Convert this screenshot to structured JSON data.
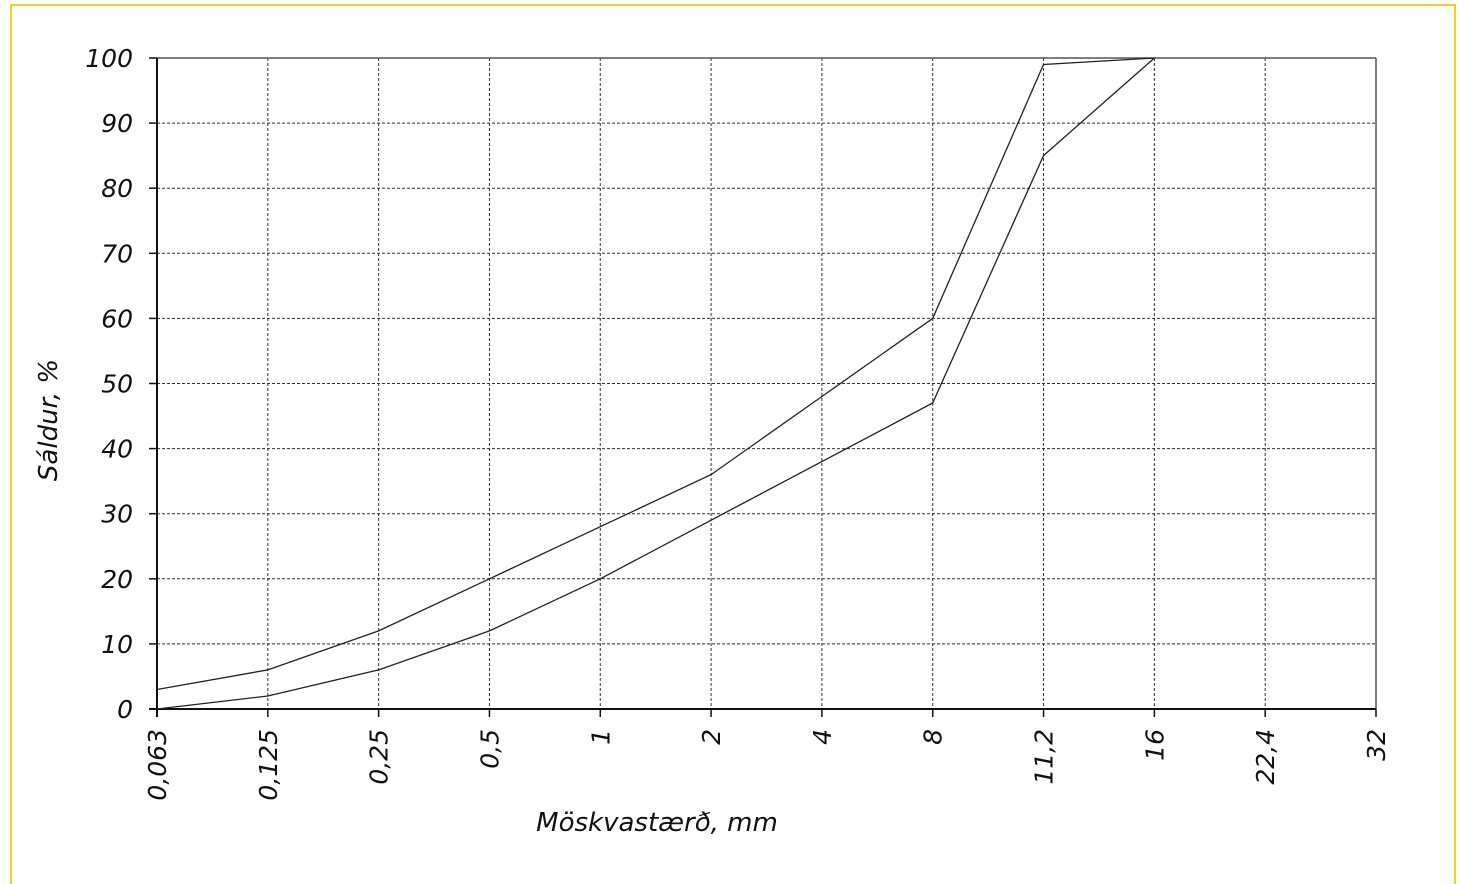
{
  "chart_data": {
    "type": "line",
    "xlabel": "Möskvastærð, mm",
    "ylabel": "Sáldur, %",
    "categories": [
      "0,063",
      "0,125",
      "0,25",
      "0,5",
      "1",
      "2",
      "4",
      "8",
      "11,2",
      "16",
      "22,4",
      "32"
    ],
    "ylim": [
      0,
      100
    ],
    "yticks": [
      "0",
      "10",
      "20",
      "30",
      "40",
      "50",
      "60",
      "70",
      "80",
      "90",
      "100"
    ],
    "grid": true,
    "series": [
      {
        "values": [
          3,
          6,
          12,
          20,
          28,
          36,
          48,
          60,
          99,
          100,
          null,
          null
        ]
      },
      {
        "values": [
          0,
          2,
          6,
          12,
          20,
          29,
          38,
          47,
          85,
          100,
          null,
          null
        ]
      }
    ],
    "colors": {
      "line": "#222222",
      "grid": "#333333",
      "frame": "#f5d020"
    }
  }
}
